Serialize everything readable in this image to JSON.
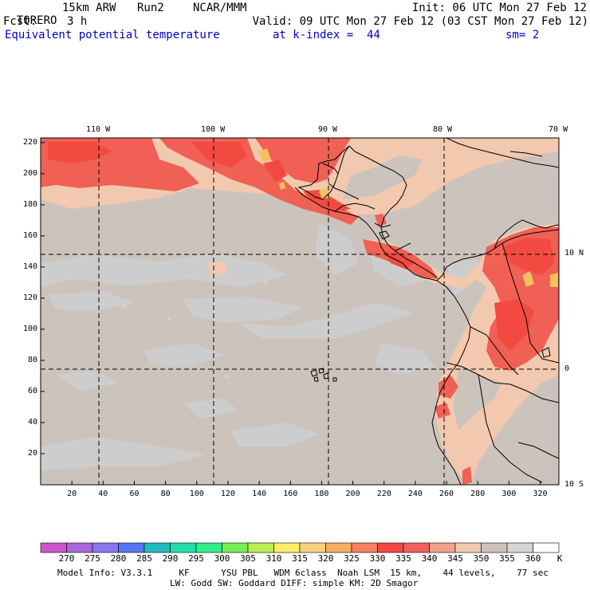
{
  "header": {
    "model": "TORERO",
    "resolution": "15km ARW",
    "run": "Run2",
    "org": "NCAR/MMM",
    "init": "Init: 06 UTC Mon 27 Feb 12",
    "fcst_label": "Fcst:",
    "fcst_value": "3 h",
    "valid": "Valid: 09 UTC Mon 27 Feb 12 (03 CST Mon 27 Feb 12)",
    "field": "Equivalent potential temperature",
    "level": "at k-index =  44",
    "smoothing": "sm= 2"
  },
  "map": {
    "top_lon_labels": [
      "110 W",
      "100 W",
      "90 W",
      "80 W",
      "70 W"
    ],
    "right_lat_labels": [
      "10 N",
      "0",
      "10 S"
    ],
    "y_ticks": [
      "20",
      "40",
      "60",
      "80",
      "100",
      "120",
      "140",
      "160",
      "180",
      "200",
      "220"
    ],
    "x_ticks": [
      "20",
      "40",
      "60",
      "80",
      "100",
      "120",
      "140",
      "160",
      "180",
      "200",
      "220",
      "240",
      "260",
      "280",
      "300",
      "320"
    ],
    "colors": {
      "ocean_345_350": "#ccc4bc",
      "cool_350_355": "#cdcdcd",
      "warm_340_345": "#f2c8ae",
      "warm_335_340": "#f3a08a",
      "hot_330_335": "#f06055",
      "hot_325_330": "#f24a40",
      "peak_315_320": "#f4c060",
      "coastline": "#000000"
    }
  },
  "colorbar": {
    "levels": [
      "270",
      "275",
      "280",
      "285",
      "290",
      "295",
      "300",
      "305",
      "310",
      "315",
      "320",
      "325",
      "330",
      "335",
      "340",
      "345",
      "350",
      "355",
      "360"
    ],
    "unit": "K",
    "colors": [
      "#cc55cc",
      "#aa66dd",
      "#8877ee",
      "#5577ee",
      "#22bbbb",
      "#22ddaa",
      "#33ee88",
      "#77ee55",
      "#bbee55",
      "#ffee66",
      "#f8d080",
      "#f4b060",
      "#f68060",
      "#f04848",
      "#f06060",
      "#f3a08a",
      "#f2c8ae",
      "#ccc4bc",
      "#d6d6d6",
      "#ffffff"
    ]
  },
  "footer": {
    "line1": "Model Info: V3.3.1     KF      YSU PBL   WDM 6class  Noah LSM  15 km,    44 levels,    77 sec",
    "line2": "LW: Godd SW: Goddard DIFF: simple KM: 2D Smagor"
  }
}
